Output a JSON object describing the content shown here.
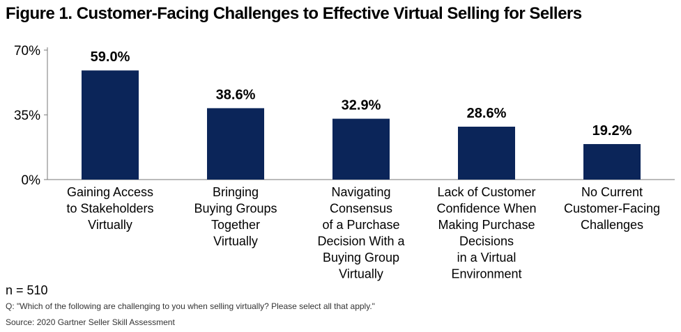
{
  "title": "Figure 1. Customer-Facing Challenges to Effective Virtual Selling for Sellers",
  "chart_data": {
    "type": "bar",
    "categories": [
      [
        "Gaining Access",
        "to Stakeholders",
        "Virtually"
      ],
      [
        "Bringing",
        "Buying Groups",
        "Together",
        "Virtually"
      ],
      [
        "Navigating",
        "Consensus",
        "of a Purchase",
        "Decision With a",
        "Buying Group",
        "Virtually"
      ],
      [
        "Lack of Customer",
        "Confidence When",
        "Making Purchase",
        "Decisions",
        "in a Virtual",
        "Environment"
      ],
      [
        "No Current",
        "Customer-Facing",
        "Challenges"
      ]
    ],
    "values": [
      59.0,
      38.6,
      32.9,
      28.6,
      19.2
    ],
    "value_labels": [
      "59.0%",
      "38.6%",
      "32.9%",
      "28.6%",
      "19.2%"
    ],
    "ylim": [
      0,
      70
    ],
    "yticks": [
      0,
      35,
      70
    ],
    "ytick_labels": [
      "0%",
      "35%",
      "70%"
    ],
    "bar_color": "#0b2559",
    "axis_color": "#777777",
    "grid": false,
    "legend": "none"
  },
  "footer": {
    "n": "n = 510",
    "question": "Q: \"Which of the following are challenging to you when selling virtually? Please select all that apply.\"",
    "source": "Source: 2020 Gartner Seller Skill Assessment"
  }
}
